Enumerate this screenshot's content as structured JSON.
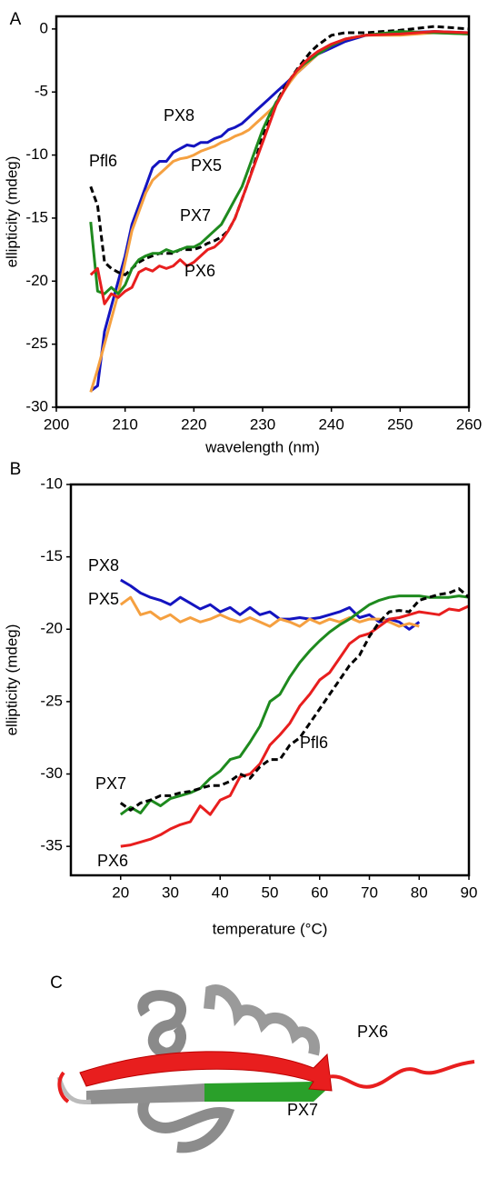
{
  "chart_data": [
    {
      "type": "line",
      "panel_label": "A",
      "xlabel": "wavelength (nm)",
      "ylabel": "ellipticity (mdeg)",
      "xlim": [
        200,
        260
      ],
      "xticks": [
        200,
        210,
        220,
        230,
        240,
        250,
        260
      ],
      "ylim": [
        -30,
        1
      ],
      "yticks": [
        -30,
        -25,
        -20,
        -15,
        -10,
        -5,
        0
      ],
      "x": [
        205,
        206,
        207,
        208,
        209,
        210,
        211,
        212,
        213,
        214,
        215,
        216,
        217,
        218,
        219,
        220,
        221,
        222,
        223,
        224,
        225,
        226,
        227,
        228,
        229,
        230,
        231,
        232,
        233,
        234,
        235,
        236,
        237,
        238,
        240,
        242,
        245,
        250,
        255,
        260
      ],
      "series": [
        {
          "name": "PX8",
          "color": "#1414c0",
          "dashed": false,
          "values": [
            -28.7,
            -28.3,
            -24,
            -22,
            -20,
            -18,
            -15.5,
            -14,
            -12.5,
            -11,
            -10.5,
            -10.5,
            -9.8,
            -9.5,
            -9.2,
            -9.3,
            -9,
            -9,
            -8.7,
            -8.5,
            -8,
            -7.8,
            -7.5,
            -7,
            -6.5,
            -6,
            -5.5,
            -5,
            -4.5,
            -4,
            -3.5,
            -3,
            -2.5,
            -2,
            -1.5,
            -1,
            -0.5,
            -0.3,
            -0.2,
            -0.3
          ]
        },
        {
          "name": "PX5",
          "color": "#f5a040",
          "dashed": false,
          "values": [
            -28.8,
            -27,
            -25,
            -23,
            -21,
            -18.5,
            -16,
            -14.5,
            -13,
            -12,
            -11.5,
            -11,
            -10.5,
            -10.3,
            -10.2,
            -10,
            -9.7,
            -9.5,
            -9.3,
            -9,
            -8.8,
            -8.5,
            -8.3,
            -8,
            -7.5,
            -7,
            -6.5,
            -6,
            -5,
            -4.2,
            -3.5,
            -3,
            -2.5,
            -2,
            -1.3,
            -0.8,
            -0.5,
            -0.5,
            -0.3,
            -0.4
          ]
        },
        {
          "name": "Pfl6",
          "color": "#000000",
          "dashed": true,
          "values": [
            -12.5,
            -14,
            -18.5,
            -19,
            -19.3,
            -19.5,
            -19,
            -18.5,
            -18.2,
            -18,
            -17.8,
            -17.8,
            -17.8,
            -17.5,
            -17.5,
            -17.5,
            -17.3,
            -17,
            -16.8,
            -16.5,
            -16,
            -15,
            -13.5,
            -12,
            -10.3,
            -8.5,
            -7,
            -5.8,
            -4.8,
            -4,
            -3.2,
            -2.5,
            -1.8,
            -1.3,
            -0.5,
            -0.3,
            -0.3,
            -0.1,
            0.2,
            0
          ]
        },
        {
          "name": "PX7",
          "color": "#1e8a1e",
          "dashed": false,
          "values": [
            -15.3,
            -20.8,
            -21,
            -20.5,
            -21,
            -20.3,
            -19,
            -18.3,
            -18,
            -17.8,
            -17.8,
            -17.5,
            -17.7,
            -17.5,
            -17.3,
            -17.3,
            -17,
            -16.5,
            -16,
            -15.5,
            -14.5,
            -13.5,
            -12.5,
            -11,
            -9.5,
            -8,
            -6.8,
            -5.8,
            -5,
            -4,
            -3.3,
            -2.8,
            -2.4,
            -2,
            -1.3,
            -0.8,
            -0.5,
            -0.2,
            -0.3,
            -0.4
          ]
        },
        {
          "name": "PX6",
          "color": "#e81e1e",
          "dashed": false,
          "values": [
            -19.5,
            -19,
            -21.8,
            -21,
            -21.3,
            -20.8,
            -20.5,
            -19.3,
            -19,
            -19.2,
            -18.8,
            -19,
            -18.8,
            -18.3,
            -18.8,
            -18.5,
            -18,
            -17.5,
            -17.3,
            -16.8,
            -16,
            -15,
            -13.5,
            -12,
            -10.5,
            -9,
            -7.5,
            -6,
            -5,
            -4,
            -3.3,
            -2.7,
            -2.2,
            -1.8,
            -1.2,
            -0.8,
            -0.5,
            -0.4,
            -0.2,
            -0.3
          ]
        }
      ]
    },
    {
      "type": "line",
      "panel_label": "B",
      "xlabel": "temperature (°C)",
      "ylabel": "ellipticity (mdeg)",
      "xlim": [
        10,
        90
      ],
      "xticks": [
        20,
        30,
        40,
        50,
        60,
        70,
        80,
        90
      ],
      "ylim": [
        -37,
        -10
      ],
      "yticks": [
        -35,
        -30,
        -25,
        -20,
        -15,
        -10
      ],
      "x": [
        20,
        22,
        24,
        26,
        28,
        30,
        32,
        34,
        36,
        38,
        40,
        42,
        44,
        46,
        48,
        50,
        52,
        54,
        56,
        58,
        60,
        62,
        64,
        66,
        68,
        70,
        72,
        74,
        76,
        78,
        80,
        82,
        84,
        86,
        88,
        90
      ],
      "series": [
        {
          "name": "PX8",
          "color": "#1414c0",
          "dashed": false,
          "values": [
            -16.6,
            -17,
            -17.5,
            -17.8,
            -18,
            -18.3,
            -17.8,
            -18.2,
            -18.6,
            -18.3,
            -18.8,
            -18.5,
            -19,
            -18.5,
            -19,
            -18.8,
            -19.3,
            -19.3,
            -19.2,
            -19.3,
            -19.2,
            -19,
            -18.8,
            -18.5,
            -19.2,
            -19,
            -19.5,
            -19.3,
            -19.5,
            -20,
            -19.5,
            null,
            null,
            null,
            null,
            null
          ]
        },
        {
          "name": "PX5",
          "color": "#f5a040",
          "dashed": false,
          "values": [
            -18.3,
            -17.8,
            -19,
            -18.8,
            -19.3,
            -19,
            -19.5,
            -19.2,
            -19.5,
            -19.3,
            -19,
            -19.3,
            -19.5,
            -19.2,
            -19.5,
            -19.8,
            -19.3,
            -19.5,
            -19.8,
            -19.3,
            -19.6,
            -19.3,
            -19.5,
            -19.2,
            -19.5,
            -19.3,
            -19.3,
            -19.5,
            -19.8,
            -19.6,
            -19.8,
            null,
            null,
            null,
            null,
            null
          ]
        },
        {
          "name": "PX7",
          "color": "#1e8a1e",
          "dashed": false,
          "values": [
            -32.8,
            -32.3,
            -32.7,
            -31.8,
            -32.2,
            -31.7,
            -31.5,
            -31.3,
            -31,
            -30.3,
            -29.8,
            -29,
            -28.8,
            -27.8,
            -26.7,
            -25,
            -24.5,
            -23.3,
            -22.3,
            -21.5,
            -20.8,
            -20.2,
            -19.7,
            -19.3,
            -18.8,
            -18.3,
            -18,
            -17.8,
            -17.7,
            -17.7,
            -17.7,
            -17.8,
            -17.8,
            -17.8,
            -17.7,
            -17.8
          ]
        },
        {
          "name": "PX6",
          "color": "#e81e1e",
          "dashed": false,
          "values": [
            -35,
            -34.9,
            -34.7,
            -34.5,
            -34.2,
            -33.8,
            -33.5,
            -33.3,
            -32.2,
            -32.8,
            -31.8,
            -31.5,
            -30.2,
            -30,
            -29.3,
            -28,
            -27.3,
            -26.5,
            -25.3,
            -24.5,
            -23.5,
            -23,
            -22,
            -21,
            -20.5,
            -20.3,
            -19.8,
            -19.3,
            -19.2,
            -19,
            -18.8,
            -18.9,
            -19,
            -18.6,
            -18.7,
            -18.4
          ]
        },
        {
          "name": "Pfl6",
          "color": "#000000",
          "dashed": true,
          "values": [
            -32,
            -32.5,
            -32,
            -31.8,
            -31.5,
            -31.5,
            -31.3,
            -31.2,
            -31,
            -30.8,
            -30.8,
            -30.5,
            -30,
            -30.3,
            -29.5,
            -29,
            -29,
            -28,
            -27.5,
            -26.5,
            -25.5,
            -24.5,
            -23.5,
            -22.5,
            -21.8,
            -20.5,
            -19.5,
            -18.8,
            -18.7,
            -18.8,
            -18,
            -17.8,
            -17.6,
            -17.5,
            -17.2,
            -17.8
          ]
        }
      ]
    }
  ],
  "structure": {
    "panel_label": "C",
    "labels": [
      {
        "text": "PX6",
        "color": "#e81e1e"
      },
      {
        "text": "PX7",
        "color": "#1e8a1e"
      }
    ]
  }
}
